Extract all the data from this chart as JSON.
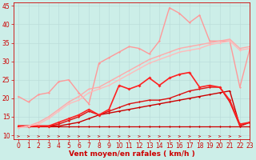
{
  "xlabel": "Vent moyen/en rafales ( km/h )",
  "xlim": [
    -0.5,
    23
  ],
  "ylim": [
    9,
    46
  ],
  "yticks": [
    10,
    15,
    20,
    25,
    30,
    35,
    40,
    45
  ],
  "xticks": [
    0,
    1,
    2,
    3,
    4,
    5,
    6,
    7,
    8,
    9,
    10,
    11,
    12,
    13,
    14,
    15,
    16,
    17,
    18,
    19,
    20,
    21,
    22,
    23
  ],
  "bg_color": "#cceee8",
  "grid_color": "#bbddda",
  "lines": [
    {
      "y": [
        12.5,
        12.5,
        12.5,
        12.5,
        12.5,
        12.5,
        12.5,
        12.5,
        12.5,
        12.5,
        12.5,
        12.5,
        12.5,
        12.5,
        12.5,
        12.5,
        12.5,
        12.5,
        12.5,
        12.5,
        12.5,
        12.5,
        12.5,
        12.5
      ],
      "color": "#cc0000",
      "lw": 0.9,
      "marker": "D",
      "ms": 1.5
    },
    {
      "y": [
        12.5,
        12.5,
        12.5,
        12.5,
        12.5,
        13.0,
        13.5,
        14.5,
        15.5,
        16.0,
        16.5,
        17.0,
        17.5,
        18.0,
        18.5,
        19.0,
        19.5,
        20.0,
        20.5,
        21.0,
        21.5,
        22.0,
        12.5,
        13.5
      ],
      "color": "#cc0000",
      "lw": 1.0,
      "marker": "D",
      "ms": 1.5
    },
    {
      "y": [
        12.5,
        12.5,
        12.5,
        12.5,
        13.0,
        14.0,
        15.0,
        16.5,
        15.5,
        16.5,
        17.5,
        18.5,
        19.0,
        19.5,
        19.5,
        20.0,
        21.0,
        22.0,
        22.5,
        23.0,
        23.0,
        19.0,
        12.5,
        13.5
      ],
      "color": "#dd1111",
      "lw": 1.0,
      "marker": "D",
      "ms": 1.5
    },
    {
      "y": [
        12.5,
        12.5,
        12.5,
        12.5,
        13.5,
        14.5,
        15.5,
        17.0,
        15.5,
        17.0,
        23.5,
        22.5,
        23.5,
        25.5,
        23.5,
        25.5,
        26.5,
        27.0,
        23.0,
        23.5,
        23.0,
        19.5,
        13.0,
        13.5
      ],
      "color": "#ff2222",
      "lw": 1.2,
      "marker": "D",
      "ms": 2.0
    },
    {
      "y": [
        20.5,
        19.0,
        21.0,
        21.5,
        24.5,
        25.0,
        21.5,
        18.5,
        29.5,
        31.0,
        32.5,
        34.0,
        33.5,
        32.0,
        35.5,
        44.5,
        43.0,
        40.5,
        42.5,
        35.5,
        35.5,
        35.5,
        23.0,
        33.5
      ],
      "color": "#ff9999",
      "lw": 1.0,
      "marker": "D",
      "ms": 1.5
    },
    {
      "y": [
        12.0,
        12.5,
        13.5,
        15.0,
        17.0,
        19.0,
        20.5,
        22.5,
        23.0,
        24.5,
        26.0,
        27.5,
        29.0,
        30.5,
        31.5,
        32.5,
        33.5,
        34.0,
        34.5,
        35.0,
        35.5,
        36.0,
        33.5,
        34.0
      ],
      "color": "#ffaaaa",
      "lw": 1.0,
      "marker": "D",
      "ms": 1.2
    },
    {
      "y": [
        12.0,
        12.5,
        13.0,
        14.5,
        16.5,
        18.5,
        19.5,
        21.5,
        22.5,
        23.5,
        25.0,
        26.5,
        28.0,
        29.5,
        30.5,
        31.5,
        32.5,
        33.0,
        33.5,
        34.5,
        35.0,
        35.5,
        33.0,
        33.5
      ],
      "color": "#ffbbbb",
      "lw": 1.0,
      "marker": "D",
      "ms": 1.2
    }
  ],
  "arrows_color": "#cc2222",
  "text_color": "#cc0000",
  "tick_color": "#cc0000",
  "xlabel_fontsize": 6.5,
  "tick_fontsize": 5.5
}
